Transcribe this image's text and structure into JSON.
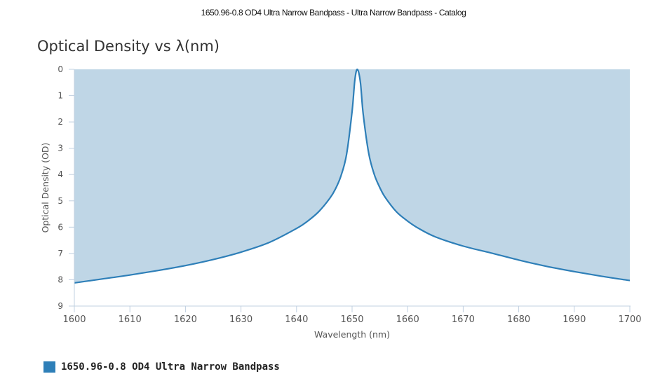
{
  "document_title": "1650.96-0.8 OD4 Ultra Narrow Bandpass - Ultra Narrow Bandpass - Catalog",
  "colors": {
    "series": "#2e7fb8",
    "fill": "#bfd6e6",
    "axis": "#c0d0e0",
    "text": "#555555"
  },
  "chart_data": {
    "type": "area",
    "title": "Optical Density vs λ(nm)",
    "xlabel": "Wavelength (nm)",
    "ylabel": "Optical Density (OD)",
    "xlim": [
      1600,
      1700
    ],
    "ylim": [
      0,
      9
    ],
    "y_reversed": true,
    "fill": "above-curve",
    "xticks": [
      1600,
      1610,
      1620,
      1630,
      1640,
      1650,
      1660,
      1670,
      1680,
      1690,
      1700
    ],
    "yticks": [
      0,
      1,
      2,
      3,
      4,
      5,
      6,
      7,
      8,
      9
    ],
    "legend_position": "bottom-left",
    "series": [
      {
        "name": "1650.96-0.8 OD4 Ultra Narrow Bandpass",
        "x": [
          1600,
          1605,
          1610,
          1615,
          1620,
          1625,
          1630,
          1635,
          1640,
          1642,
          1644,
          1646,
          1647,
          1648,
          1649,
          1650,
          1650.5,
          1650.96,
          1651.5,
          1652,
          1653,
          1654,
          1655,
          1656,
          1658,
          1660,
          1662,
          1665,
          1670,
          1675,
          1680,
          1685,
          1690,
          1695,
          1700
        ],
        "y": [
          8.12,
          7.97,
          7.82,
          7.65,
          7.46,
          7.23,
          6.95,
          6.59,
          6.05,
          5.77,
          5.41,
          4.9,
          4.55,
          4.05,
          3.24,
          1.6,
          0.4,
          0.0,
          0.5,
          1.7,
          3.2,
          4.0,
          4.5,
          4.88,
          5.42,
          5.77,
          6.05,
          6.37,
          6.72,
          6.98,
          7.25,
          7.49,
          7.69,
          7.87,
          8.03
        ]
      }
    ]
  }
}
